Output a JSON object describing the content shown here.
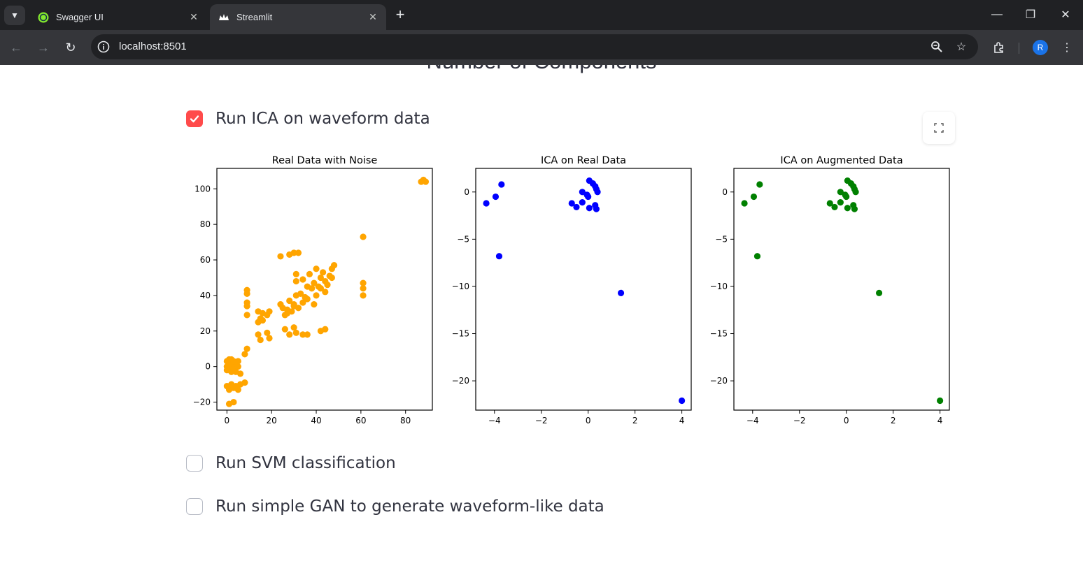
{
  "browser": {
    "tabs": [
      {
        "title": "Swagger UI",
        "active": false,
        "icon": "swagger-icon"
      },
      {
        "title": "Streamlit",
        "active": true,
        "icon": "streamlit-crown-icon"
      }
    ],
    "address": "localhost:8501",
    "profile_initial": "R"
  },
  "page": {
    "partial_heading": "Number of Components",
    "checkboxes": [
      {
        "label": "Run ICA on waveform data",
        "checked": true
      },
      {
        "label": "Run SVM classification",
        "checked": false
      },
      {
        "label": "Run simple GAN to generate waveform-like data",
        "checked": false
      }
    ],
    "accent_color": "#ff4b4b"
  },
  "chart_data": [
    {
      "type": "scatter",
      "title": "Real Data with Noise",
      "color": "#ffa500",
      "xlim": [
        -4.5,
        92
      ],
      "ylim": [
        -24.5,
        111.5
      ],
      "xticks": [
        0,
        20,
        40,
        60,
        80
      ],
      "yticks": [
        -20,
        0,
        20,
        40,
        60,
        80,
        100
      ],
      "points": [
        [
          0,
          3
        ],
        [
          1,
          2
        ],
        [
          2,
          0
        ],
        [
          0,
          -2
        ],
        [
          1,
          4
        ],
        [
          3,
          2
        ],
        [
          2,
          -3
        ],
        [
          4,
          1
        ],
        [
          3,
          -1
        ],
        [
          5,
          3
        ],
        [
          4,
          -3
        ],
        [
          5,
          0
        ],
        [
          6,
          -4
        ],
        [
          2,
          4
        ],
        [
          0,
          0
        ],
        [
          3,
          3
        ],
        [
          0,
          -11
        ],
        [
          1,
          -13
        ],
        [
          2,
          -10
        ],
        [
          3,
          -12
        ],
        [
          4,
          -11
        ],
        [
          5,
          -13
        ],
        [
          6,
          -10
        ],
        [
          1,
          -21
        ],
        [
          3,
          -20
        ],
        [
          8,
          -9
        ],
        [
          8,
          7
        ],
        [
          9,
          10
        ],
        [
          9,
          41
        ],
        [
          9,
          43
        ],
        [
          9,
          34
        ],
        [
          9,
          36
        ],
        [
          9,
          29
        ],
        [
          14,
          31
        ],
        [
          15,
          27
        ],
        [
          16,
          30
        ],
        [
          18,
          29
        ],
        [
          19,
          31
        ],
        [
          14,
          25
        ],
        [
          16,
          26
        ],
        [
          14,
          18
        ],
        [
          15,
          15
        ],
        [
          18,
          19
        ],
        [
          19,
          16
        ],
        [
          24,
          62
        ],
        [
          28,
          63
        ],
        [
          30,
          64
        ],
        [
          32,
          64
        ],
        [
          24,
          35
        ],
        [
          25,
          33
        ],
        [
          27,
          30
        ],
        [
          28,
          37
        ],
        [
          26,
          29
        ],
        [
          30,
          35
        ],
        [
          32,
          33
        ],
        [
          29,
          31
        ],
        [
          34,
          36
        ],
        [
          33,
          41
        ],
        [
          35,
          39
        ],
        [
          36,
          45
        ],
        [
          38,
          44
        ],
        [
          36,
          38
        ],
        [
          31,
          40
        ],
        [
          27,
          32
        ],
        [
          30,
          34
        ],
        [
          26,
          21
        ],
        [
          28,
          18
        ],
        [
          30,
          22
        ],
        [
          31,
          19
        ],
        [
          34,
          18
        ],
        [
          36,
          18
        ],
        [
          31,
          48
        ],
        [
          31,
          52
        ],
        [
          34,
          49
        ],
        [
          37,
          52
        ],
        [
          39,
          47
        ],
        [
          40,
          55
        ],
        [
          42,
          50
        ],
        [
          41,
          45
        ],
        [
          43,
          53
        ],
        [
          44,
          48
        ],
        [
          45,
          46
        ],
        [
          46,
          51
        ],
        [
          47,
          55
        ],
        [
          48,
          57
        ],
        [
          47,
          50
        ],
        [
          44,
          42
        ],
        [
          42,
          44
        ],
        [
          40,
          40
        ],
        [
          39,
          35
        ],
        [
          42,
          20
        ],
        [
          44,
          21
        ],
        [
          61,
          73
        ],
        [
          61,
          47
        ],
        [
          61,
          44
        ],
        [
          61,
          40
        ],
        [
          87,
          104
        ],
        [
          88,
          105
        ],
        [
          89,
          104
        ]
      ]
    },
    {
      "type": "scatter",
      "title": "ICA on Real Data",
      "color": "#0000ff",
      "xlim": [
        -4.8,
        4.4
      ],
      "ylim": [
        -23.1,
        2.5
      ],
      "xticks": [
        -4,
        -2,
        0,
        2,
        4
      ],
      "yticks": [
        0,
        -5,
        -10,
        -15,
        -20
      ],
      "points": [
        [
          -4.35,
          -1.2
        ],
        [
          -3.95,
          -0.5
        ],
        [
          -3.7,
          0.8
        ],
        [
          -3.8,
          -6.8
        ],
        [
          0.05,
          1.2
        ],
        [
          0.2,
          0.9
        ],
        [
          0.3,
          0.6
        ],
        [
          0.35,
          0.3
        ],
        [
          0.4,
          0.0
        ],
        [
          -0.25,
          0.0
        ],
        [
          -0.05,
          -0.3
        ],
        [
          0.0,
          -0.5
        ],
        [
          -0.25,
          -1.1
        ],
        [
          -0.7,
          -1.2
        ],
        [
          -0.5,
          -1.6
        ],
        [
          0.05,
          -1.7
        ],
        [
          0.3,
          -1.4
        ],
        [
          0.35,
          -1.8
        ],
        [
          1.4,
          -10.7
        ],
        [
          4.0,
          -22.1
        ]
      ]
    },
    {
      "type": "scatter",
      "title": "ICA on Augmented Data",
      "color": "#008000",
      "xlim": [
        -4.8,
        4.4
      ],
      "ylim": [
        -23.1,
        2.5
      ],
      "xticks": [
        -4,
        -2,
        0,
        2,
        4
      ],
      "yticks": [
        0,
        -5,
        -10,
        -15,
        -20
      ],
      "points": [
        [
          -4.35,
          -1.2
        ],
        [
          -3.95,
          -0.5
        ],
        [
          -3.7,
          0.8
        ],
        [
          -3.8,
          -6.8
        ],
        [
          0.05,
          1.2
        ],
        [
          0.2,
          0.9
        ],
        [
          0.3,
          0.6
        ],
        [
          0.35,
          0.3
        ],
        [
          0.4,
          0.0
        ],
        [
          -0.25,
          0.0
        ],
        [
          -0.05,
          -0.3
        ],
        [
          0.0,
          -0.5
        ],
        [
          -0.25,
          -1.1
        ],
        [
          -0.7,
          -1.2
        ],
        [
          -0.5,
          -1.6
        ],
        [
          0.05,
          -1.7
        ],
        [
          0.3,
          -1.4
        ],
        [
          0.35,
          -1.8
        ],
        [
          1.4,
          -10.7
        ],
        [
          4.0,
          -22.1
        ]
      ]
    }
  ]
}
